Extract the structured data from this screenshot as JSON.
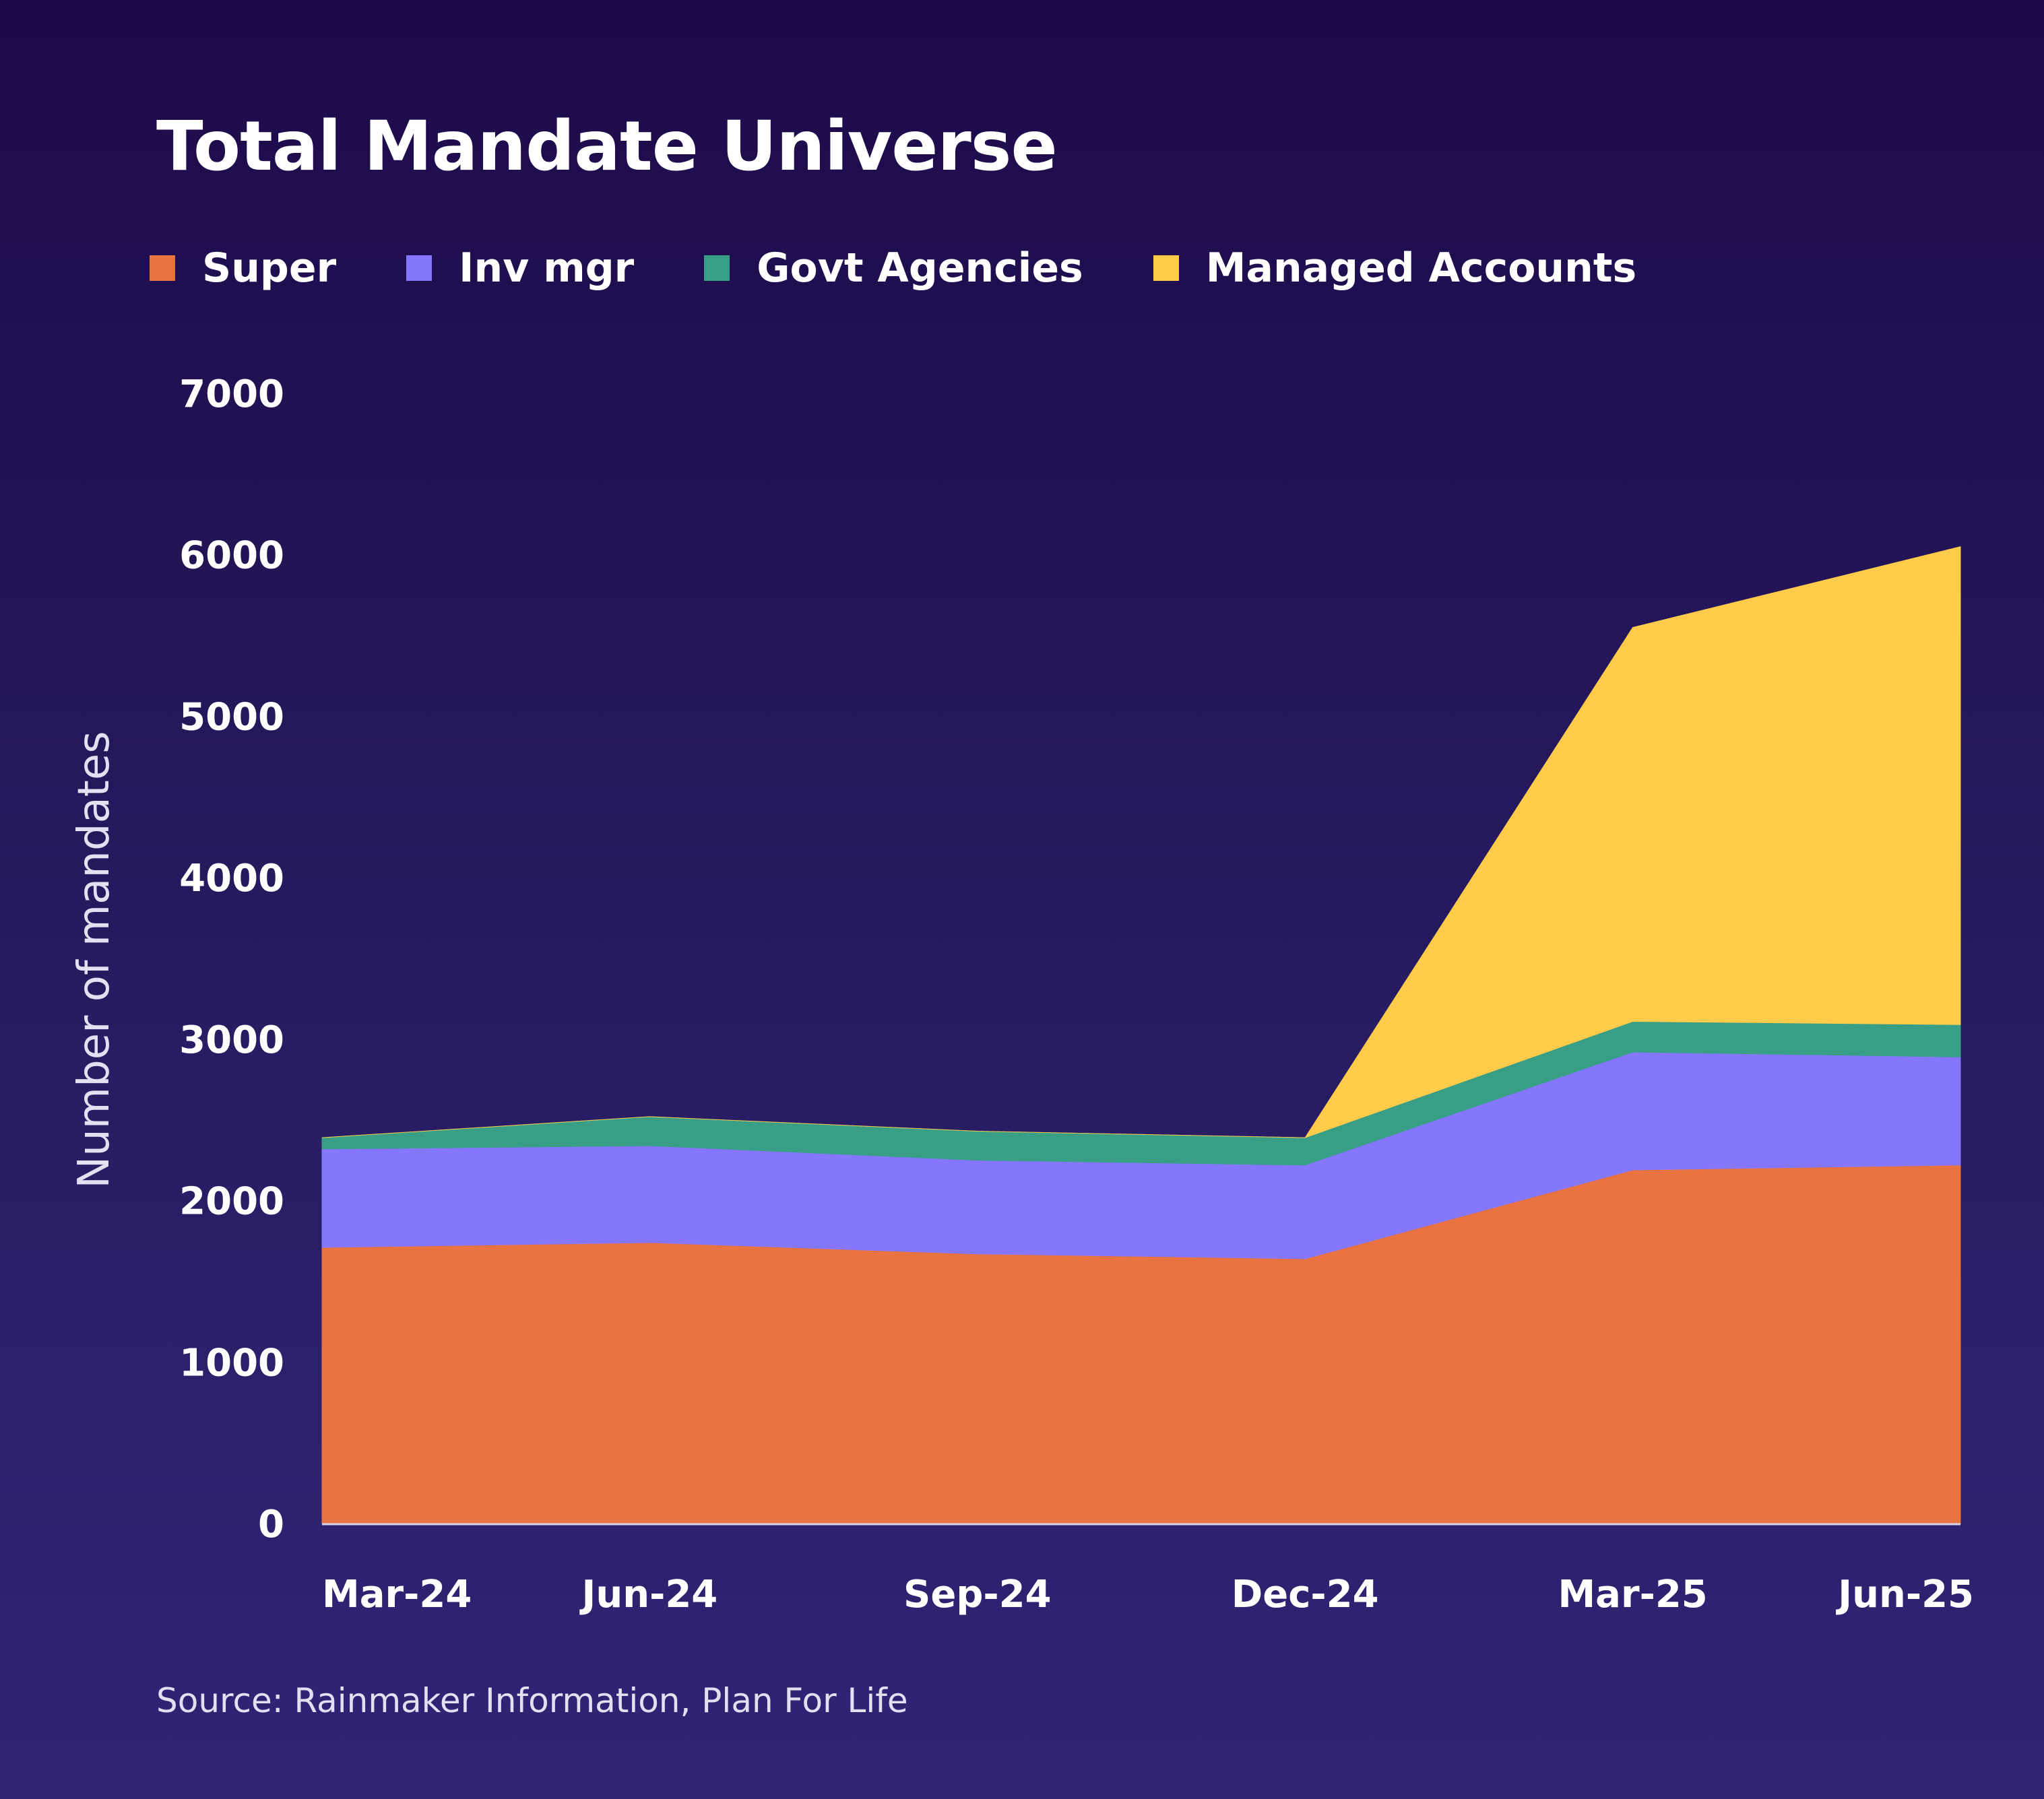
{
  "title": "Total Mandate Universe",
  "source": "Source: Rainmaker Information, Plan For Life",
  "legend": [
    {
      "label": "Super",
      "color": "#e97340"
    },
    {
      "label": "Inv mgr",
      "color": "#8576fe"
    },
    {
      "label": "Govt Agencies",
      "color": "#399e86"
    },
    {
      "label": "Managed Accounts",
      "color": "#fecb4a"
    }
  ],
  "chart_data": {
    "type": "area",
    "stacked": true,
    "title": "Total Mandate Universe",
    "xlabel": "",
    "ylabel": "Number of mandates",
    "categories": [
      "Mar-24",
      "Jun-24",
      "Sep-24",
      "Dec-24",
      "Mar-25",
      "Jun-25"
    ],
    "ylim": [
      0,
      7000
    ],
    "yticks": [
      0,
      1000,
      2000,
      3000,
      4000,
      5000,
      6000,
      7000
    ],
    "grid": false,
    "legend_position": "top",
    "series": [
      {
        "name": "Super",
        "color": "#e97340",
        "values": [
          1710,
          1740,
          1670,
          1640,
          2190,
          2220
        ]
      },
      {
        "name": "Inv mgr",
        "color": "#8576fe",
        "values": [
          610,
          600,
          580,
          580,
          730,
          670
        ]
      },
      {
        "name": "Govt Agencies",
        "color": "#399e86",
        "values": [
          70,
          180,
          180,
          170,
          190,
          200
        ]
      },
      {
        "name": "Managed Accounts",
        "color": "#fecb4a",
        "values": [
          0,
          0,
          0,
          0,
          2440,
          2960
        ]
      }
    ]
  }
}
